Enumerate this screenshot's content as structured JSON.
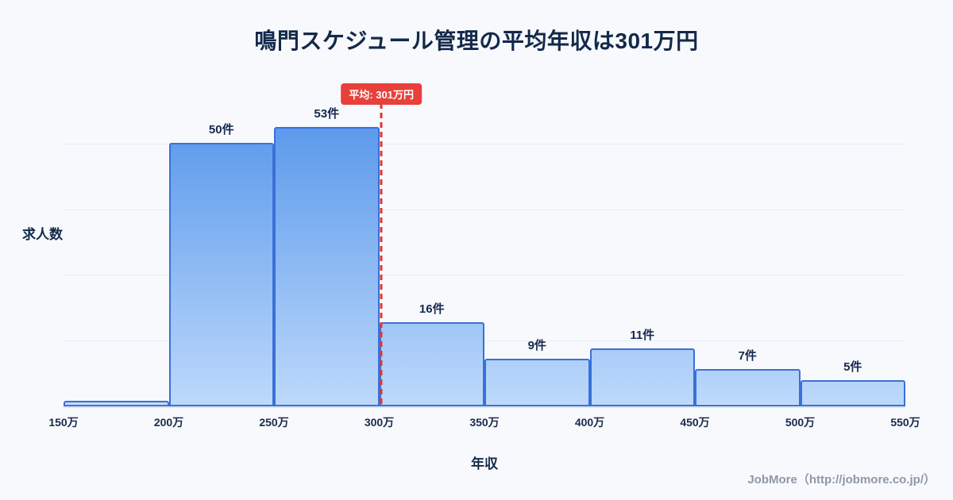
{
  "title": "鳴門スケジュール管理の平均年収は301万円",
  "footer": {
    "text": "JobMore（http://jobmore.co.jp/）"
  },
  "chart_data": {
    "type": "bar",
    "subtype": "histogram",
    "title": "鳴門スケジュール管理の平均年収は301万円",
    "xlabel": "年収",
    "ylabel": "求人数",
    "x_tick_labels": [
      "150万",
      "200万",
      "250万",
      "300万",
      "350万",
      "400万",
      "450万",
      "500万",
      "550万"
    ],
    "x_range": [
      150,
      550
    ],
    "ylim": [
      0,
      62
    ],
    "grid": true,
    "bins": [
      {
        "range": "150万-200万",
        "count": 1,
        "label": ""
      },
      {
        "range": "200万-250万",
        "count": 50,
        "label": "50件"
      },
      {
        "range": "250万-300万",
        "count": 53,
        "label": "53件"
      },
      {
        "range": "300万-350万",
        "count": 16,
        "label": "16件"
      },
      {
        "range": "350万-400万",
        "count": 9,
        "label": "9件"
      },
      {
        "range": "400万-450万",
        "count": 11,
        "label": "11件"
      },
      {
        "range": "450万-500万",
        "count": 7,
        "label": "7件"
      },
      {
        "range": "500万-550万",
        "count": 5,
        "label": "5件"
      }
    ],
    "average": {
      "value": 301,
      "label": "平均: 301万円"
    },
    "colors": {
      "background": "#f7f9fc",
      "title_text": "#13294b",
      "bar_fill_top": "#4b8fe9",
      "bar_fill_bottom": "#bdd9fb",
      "bar_border": "#3a70d9",
      "average_line": "#e3362f",
      "average_badge_bg": "#e8403a",
      "average_badge_text": "#ffffff",
      "footer_text": "#8e98a8"
    }
  }
}
